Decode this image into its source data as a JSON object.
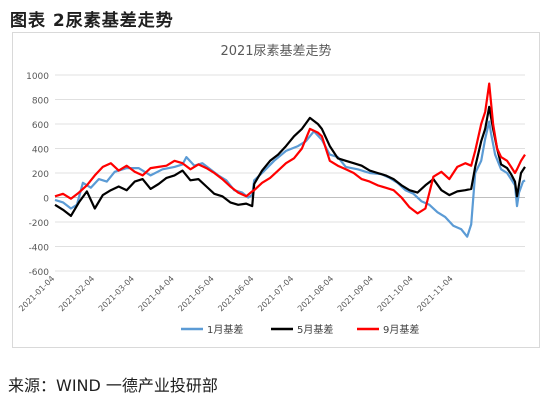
{
  "figure": {
    "caption": "图表 2尿素基差走势",
    "source": "来源：WIND 一德产业投研部"
  },
  "chart_data": {
    "type": "line",
    "title": "2021尿素基差走势",
    "xlabel": "",
    "ylabel": "",
    "ylim": [
      -600,
      1000
    ],
    "yticks": [
      1000,
      800,
      600,
      400,
      200,
      0,
      -200,
      -400,
      -600
    ],
    "x_tick_labels": [
      "2021-01-04",
      "2021-02-04",
      "2021-03-04",
      "2021-04-04",
      "2021-05-04",
      "2021-06-04",
      "2021-07-04",
      "2021-08-04",
      "2021-09-04",
      "2021-10-04",
      "2021-11-04"
    ],
    "x_range": [
      0,
      11.8
    ],
    "legend_position": "bottom",
    "grid": "horizontal",
    "series": [
      {
        "name": "1月基差",
        "color": "#5b9bd5",
        "points": [
          [
            0.0,
            -20
          ],
          [
            0.2,
            -40
          ],
          [
            0.4,
            -90
          ],
          [
            0.55,
            -60
          ],
          [
            0.7,
            120
          ],
          [
            0.9,
            80
          ],
          [
            1.1,
            150
          ],
          [
            1.3,
            130
          ],
          [
            1.5,
            210
          ],
          [
            1.8,
            240
          ],
          [
            2.1,
            240
          ],
          [
            2.4,
            180
          ],
          [
            2.7,
            230
          ],
          [
            3.0,
            250
          ],
          [
            3.2,
            270
          ],
          [
            3.3,
            330
          ],
          [
            3.5,
            260
          ],
          [
            3.7,
            280
          ],
          [
            3.9,
            230
          ],
          [
            4.1,
            180
          ],
          [
            4.3,
            140
          ],
          [
            4.5,
            60
          ],
          [
            4.7,
            40
          ],
          [
            4.85,
            0
          ],
          [
            4.95,
            20
          ],
          [
            5.0,
            140
          ],
          [
            5.2,
            200
          ],
          [
            5.5,
            300
          ],
          [
            5.8,
            380
          ],
          [
            6.1,
            420
          ],
          [
            6.3,
            460
          ],
          [
            6.5,
            540
          ],
          [
            6.7,
            470
          ],
          [
            6.9,
            350
          ],
          [
            7.1,
            330
          ],
          [
            7.3,
            250
          ],
          [
            7.6,
            230
          ],
          [
            7.9,
            200
          ],
          [
            8.2,
            190
          ],
          [
            8.4,
            160
          ],
          [
            8.6,
            120
          ],
          [
            8.8,
            60
          ],
          [
            9.0,
            30
          ],
          [
            9.2,
            -30
          ],
          [
            9.4,
            -60
          ],
          [
            9.6,
            -120
          ],
          [
            9.8,
            -160
          ],
          [
            10.0,
            -230
          ],
          [
            10.2,
            -260
          ],
          [
            10.35,
            -320
          ],
          [
            10.45,
            -220
          ],
          [
            10.55,
            200
          ],
          [
            10.7,
            300
          ],
          [
            10.8,
            480
          ],
          [
            10.9,
            620
          ],
          [
            10.95,
            520
          ],
          [
            11.05,
            350
          ],
          [
            11.2,
            230
          ],
          [
            11.35,
            200
          ],
          [
            11.45,
            150
          ],
          [
            11.55,
            100
          ],
          [
            11.6,
            -70
          ],
          [
            11.65,
            40
          ],
          [
            11.75,
            130
          ],
          [
            11.8,
            140
          ]
        ]
      },
      {
        "name": "5月基差",
        "color": "#000000",
        "points": [
          [
            0.0,
            -60
          ],
          [
            0.2,
            -100
          ],
          [
            0.4,
            -150
          ],
          [
            0.6,
            -40
          ],
          [
            0.8,
            50
          ],
          [
            1.0,
            -90
          ],
          [
            1.2,
            20
          ],
          [
            1.4,
            60
          ],
          [
            1.6,
            90
          ],
          [
            1.8,
            60
          ],
          [
            2.0,
            130
          ],
          [
            2.2,
            150
          ],
          [
            2.4,
            70
          ],
          [
            2.6,
            110
          ],
          [
            2.8,
            160
          ],
          [
            3.0,
            180
          ],
          [
            3.2,
            220
          ],
          [
            3.4,
            140
          ],
          [
            3.6,
            150
          ],
          [
            3.8,
            90
          ],
          [
            4.0,
            30
          ],
          [
            4.2,
            10
          ],
          [
            4.4,
            -40
          ],
          [
            4.6,
            -60
          ],
          [
            4.8,
            -50
          ],
          [
            4.95,
            -70
          ],
          [
            5.0,
            110
          ],
          [
            5.2,
            220
          ],
          [
            5.4,
            300
          ],
          [
            5.6,
            350
          ],
          [
            5.8,
            420
          ],
          [
            6.0,
            500
          ],
          [
            6.2,
            560
          ],
          [
            6.4,
            650
          ],
          [
            6.6,
            600
          ],
          [
            6.7,
            560
          ],
          [
            6.9,
            420
          ],
          [
            7.1,
            320
          ],
          [
            7.3,
            300
          ],
          [
            7.5,
            280
          ],
          [
            7.7,
            260
          ],
          [
            7.9,
            220
          ],
          [
            8.1,
            200
          ],
          [
            8.3,
            180
          ],
          [
            8.5,
            150
          ],
          [
            8.7,
            100
          ],
          [
            8.9,
            60
          ],
          [
            9.1,
            40
          ],
          [
            9.3,
            100
          ],
          [
            9.5,
            150
          ],
          [
            9.7,
            60
          ],
          [
            9.9,
            20
          ],
          [
            10.1,
            50
          ],
          [
            10.3,
            60
          ],
          [
            10.45,
            70
          ],
          [
            10.55,
            250
          ],
          [
            10.7,
            460
          ],
          [
            10.8,
            560
          ],
          [
            10.9,
            740
          ],
          [
            11.0,
            560
          ],
          [
            11.1,
            400
          ],
          [
            11.2,
            270
          ],
          [
            11.35,
            240
          ],
          [
            11.45,
            190
          ],
          [
            11.55,
            130
          ],
          [
            11.6,
            10
          ],
          [
            11.7,
            200
          ],
          [
            11.8,
            250
          ]
        ]
      },
      {
        "name": "9月基差",
        "color": "#ff0000",
        "points": [
          [
            0.0,
            10
          ],
          [
            0.2,
            30
          ],
          [
            0.4,
            -10
          ],
          [
            0.6,
            40
          ],
          [
            0.8,
            100
          ],
          [
            1.0,
            180
          ],
          [
            1.2,
            250
          ],
          [
            1.4,
            280
          ],
          [
            1.6,
            220
          ],
          [
            1.8,
            260
          ],
          [
            2.0,
            210
          ],
          [
            2.2,
            180
          ],
          [
            2.4,
            240
          ],
          [
            2.6,
            250
          ],
          [
            2.8,
            260
          ],
          [
            3.0,
            300
          ],
          [
            3.2,
            280
          ],
          [
            3.4,
            230
          ],
          [
            3.6,
            270
          ],
          [
            3.8,
            240
          ],
          [
            4.0,
            200
          ],
          [
            4.2,
            150
          ],
          [
            4.4,
            90
          ],
          [
            4.6,
            40
          ],
          [
            4.8,
            10
          ],
          [
            4.95,
            50
          ],
          [
            5.0,
            60
          ],
          [
            5.2,
            120
          ],
          [
            5.4,
            160
          ],
          [
            5.6,
            220
          ],
          [
            5.8,
            280
          ],
          [
            6.0,
            320
          ],
          [
            6.2,
            400
          ],
          [
            6.4,
            560
          ],
          [
            6.6,
            530
          ],
          [
            6.7,
            500
          ],
          [
            6.9,
            300
          ],
          [
            7.1,
            260
          ],
          [
            7.3,
            230
          ],
          [
            7.5,
            200
          ],
          [
            7.7,
            150
          ],
          [
            7.9,
            130
          ],
          [
            8.1,
            100
          ],
          [
            8.3,
            80
          ],
          [
            8.5,
            60
          ],
          [
            8.7,
            0
          ],
          [
            8.9,
            -80
          ],
          [
            9.1,
            -130
          ],
          [
            9.3,
            -90
          ],
          [
            9.5,
            170
          ],
          [
            9.7,
            210
          ],
          [
            9.9,
            150
          ],
          [
            10.1,
            250
          ],
          [
            10.3,
            280
          ],
          [
            10.45,
            260
          ],
          [
            10.55,
            380
          ],
          [
            10.7,
            600
          ],
          [
            10.8,
            700
          ],
          [
            10.9,
            930
          ],
          [
            11.0,
            600
          ],
          [
            11.1,
            400
          ],
          [
            11.2,
            330
          ],
          [
            11.35,
            300
          ],
          [
            11.45,
            250
          ],
          [
            11.55,
            200
          ],
          [
            11.6,
            230
          ],
          [
            11.7,
            300
          ],
          [
            11.8,
            350
          ]
        ]
      }
    ]
  }
}
